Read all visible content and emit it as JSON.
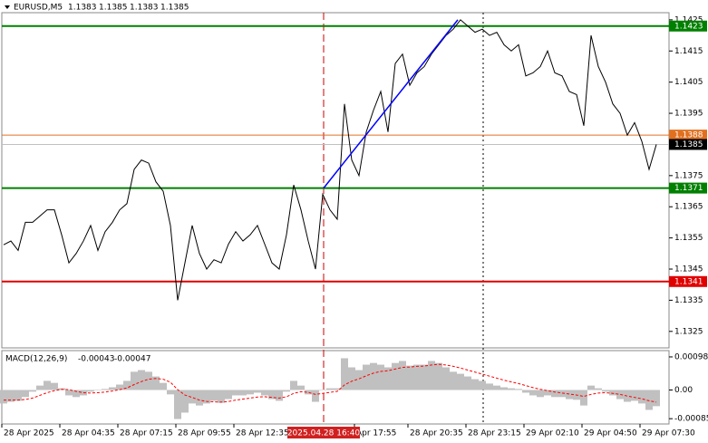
{
  "chart_data": [
    {
      "type": "line",
      "title": "EURUSD,M5",
      "ohlc": [
        1.1383,
        1.1385,
        1.1383,
        1.1385
      ],
      "color": "#000000",
      "values": [
        1.13528,
        1.1354,
        1.1351,
        1.136,
        1.136,
        1.1362,
        1.1364,
        1.1364,
        1.1356,
        1.1347,
        1.135,
        1.1354,
        1.1359,
        1.1351,
        1.1357,
        1.136,
        1.1364,
        1.1366,
        1.1377,
        1.138,
        1.1379,
        1.1373,
        1.137,
        1.1359,
        1.1335,
        1.1347,
        1.1359,
        1.135,
        1.1345,
        1.1348,
        1.1347,
        1.1353,
        1.1357,
        1.1354,
        1.1356,
        1.1359,
        1.1353,
        1.1347,
        1.1345,
        1.1356,
        1.1372,
        1.1364,
        1.1354,
        1.1345,
        1.1369,
        1.1364,
        1.1361,
        1.1398,
        1.138,
        1.1375,
        1.1389,
        1.1396,
        1.1402,
        1.1389,
        1.1411,
        1.1414,
        1.1404,
        1.1408,
        1.141,
        1.1414,
        1.1417,
        1.142,
        1.1422,
        1.1425,
        1.1423,
        1.1421,
        1.1422,
        1.142,
        1.1421,
        1.1417,
        1.1415,
        1.1417,
        1.1407,
        1.1408,
        1.141,
        1.1415,
        1.1408,
        1.1407,
        1.1402,
        1.1401,
        1.1391,
        1.142,
        1.141,
        1.1405,
        1.1398,
        1.1395,
        1.1388,
        1.1392,
        1.1386,
        1.1377,
        1.1385
      ],
      "xlim": [
        -0.25,
        91.75
      ],
      "ylim": [
        1.132,
        1.1427
      ],
      "yticks": [
        1.1325,
        1.1335,
        1.1345,
        1.1355,
        1.1365,
        1.1375,
        1.1385,
        1.1395,
        1.1405,
        1.1415,
        1.1425
      ],
      "xticks": [
        {
          "value": -0.25,
          "label": "28 Apr 2025"
        },
        {
          "value": 7.75,
          "label": "28 Apr 04:35"
        },
        {
          "value": 15.75,
          "label": "28 Apr 07:15"
        },
        {
          "value": 23.75,
          "label": "28 Apr 09:55"
        },
        {
          "value": 31.75,
          "label": "28 Apr 12:35"
        },
        {
          "value": 48.375,
          "label": "Apr 17:55"
        },
        {
          "value": 55.75,
          "label": "28 Apr 20:35"
        },
        {
          "value": 63.75,
          "label": "28 Apr 23:15"
        },
        {
          "value": 71.75,
          "label": "29 Apr 02:10"
        },
        {
          "value": 79.75,
          "label": "29 Apr 04:50"
        },
        {
          "value": 87.75,
          "label": "29 Apr 07:30"
        }
      ],
      "levels": [
        {
          "value": 1.1423,
          "color": "#008000"
        },
        {
          "value": 1.1388,
          "color": "#e07020"
        },
        {
          "value": 1.1371,
          "color": "#008000"
        },
        {
          "value": 1.1341,
          "color": "#e00000"
        }
      ],
      "last_price": 1.1385,
      "trendline": {
        "x": [
          44.125,
          62.625
        ],
        "y": [
          1.1371,
          1.1425
        ],
        "color": "#0000ff"
      },
      "marker": {
        "x": 44.125,
        "label": "2025.04.28 16:40"
      },
      "separators": [
        66.125
      ]
    },
    {
      "type": "macd",
      "title": "MACD(12,26,9)",
      "indicator_values": [
        -0.00043,
        -0.00047
      ],
      "ylim": [
        -0.00098,
        0.00114
      ],
      "yticks": [
        -0.00085,
        {
          "value": 0,
          "label": "0.00"
        },
        0.00098
      ],
      "histogram": {
        "color": "#c0c0c0",
        "values": [
          -0.0004,
          -0.00035,
          -0.00032,
          -0.00021,
          -5e-05,
          0.00013,
          0.00027,
          0.00021,
          5e-05,
          -0.00016,
          -0.00021,
          -0.00016,
          -5e-05,
          0,
          3e-05,
          8e-05,
          0.00016,
          0.00027,
          0.00054,
          0.00059,
          0.00054,
          0.0004,
          0.00021,
          -0.00013,
          -0.00086,
          -0.00067,
          -0.0004,
          -0.00046,
          -0.0004,
          -0.00032,
          -0.00038,
          -0.00027,
          -0.00016,
          -0.00016,
          -0.00013,
          -8e-05,
          -0.00016,
          -0.00027,
          -0.00032,
          -5e-05,
          0.00027,
          0.00013,
          -0.00013,
          -0.00035,
          0,
          5e-05,
          5e-05,
          0.00094,
          0.00067,
          0.00059,
          0.00075,
          0.0008,
          0.00075,
          0.00067,
          0.0008,
          0.00086,
          0.00072,
          0.00075,
          0.00075,
          0.00086,
          0.0008,
          0.00067,
          0.00054,
          0.00048,
          0.0004,
          0.00032,
          0.00027,
          0.00019,
          0.00013,
          8e-05,
          5e-05,
          3e-05,
          -8e-05,
          -0.00016,
          -0.00021,
          -0.00016,
          -0.00021,
          -0.00021,
          -0.00027,
          -0.00029,
          -0.00046,
          0.00013,
          5e-05,
          -5e-05,
          -0.00016,
          -0.00027,
          -0.00035,
          -0.00032,
          -0.0004,
          -0.00059,
          -0.00048
        ]
      },
      "signal": {
        "color": "#ff0000",
        "values": [
          -0.0003,
          -0.0003,
          -0.0003,
          -0.00028,
          -0.00024,
          -0.00016,
          -8e-05,
          -2e-05,
          2e-05,
          1e-05,
          -4e-05,
          -8e-05,
          -9e-05,
          -8e-05,
          -6e-05,
          -3e-05,
          1e-05,
          6e-05,
          0.00016,
          0.00025,
          0.00032,
          0.00034,
          0.00032,
          0.00023,
          1e-05,
          -0.00015,
          -0.00022,
          -0.0003,
          -0.00034,
          -0.00035,
          -0.00036,
          -0.00034,
          -0.0003,
          -0.00027,
          -0.00024,
          -0.00021,
          -0.0002,
          -0.00022,
          -0.00024,
          -0.0002,
          -0.0001,
          -5e-05,
          -7e-05,
          -0.00013,
          -0.0001,
          -7e-05,
          -4e-05,
          0.00015,
          0.00026,
          0.00033,
          0.00042,
          0.0005,
          0.00055,
          0.00057,
          0.00062,
          0.00067,
          0.00068,
          0.0007,
          0.00071,
          0.00074,
          0.00076,
          0.00074,
          0.0007,
          0.00065,
          0.00059,
          0.00053,
          0.00047,
          0.00041,
          0.00035,
          0.00029,
          0.00024,
          0.00019,
          0.00013,
          7e-05,
          2e-05,
          -2e-05,
          -6e-05,
          -9e-05,
          -0.00012,
          -0.00015,
          -0.00019,
          -0.00013,
          -9e-05,
          -8e-05,
          -0.0001,
          -0.00013,
          -0.00018,
          -0.00022,
          -0.00026,
          -0.00032,
          -0.00036
        ]
      }
    }
  ]
}
